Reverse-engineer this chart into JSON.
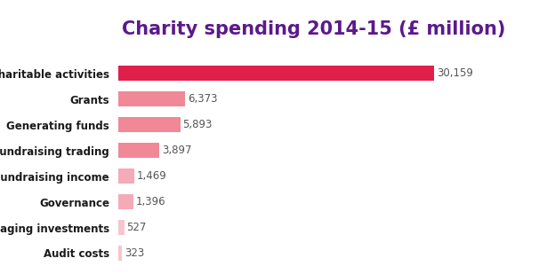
{
  "title": "Charity spending 2014-15 (£ million)",
  "title_color": "#5b1a8a",
  "title_fontsize": 15,
  "categories": [
    "Audit costs",
    "Managing investments",
    "Governance",
    "Fundraising income",
    "Fundraising trading",
    "Generating funds",
    "Grants",
    "Charitable activities"
  ],
  "values": [
    323,
    527,
    1396,
    1469,
    3897,
    5893,
    6373,
    30159
  ],
  "labels": [
    "323",
    "527",
    "1,396",
    "1,469",
    "3,897",
    "5,893",
    "6,373",
    "30,159"
  ],
  "bar_colors": [
    "#f7c5cd",
    "#f7c5cd",
    "#f5aab8",
    "#f5aab8",
    "#f08898",
    "#f08898",
    "#f08898",
    "#e01f4a"
  ],
  "label_color": "#555555",
  "label_fontsize": 8.5,
  "category_fontsize": 8.5,
  "background_color": "#ffffff",
  "xlim": 34000,
  "bar_height": 0.58
}
